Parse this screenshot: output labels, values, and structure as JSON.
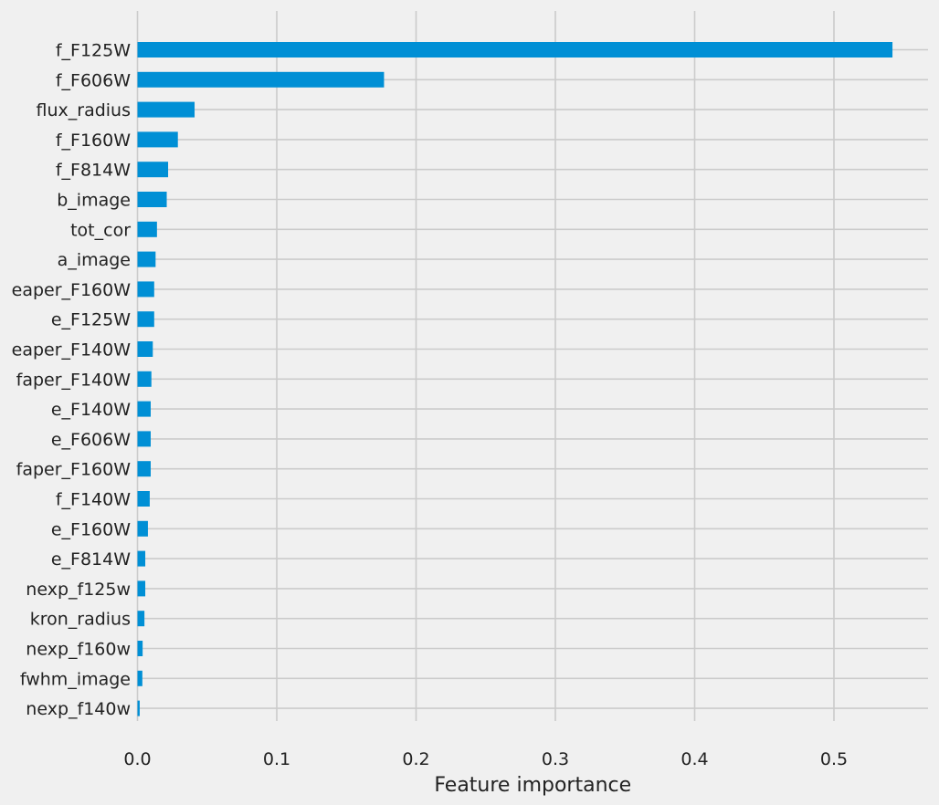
{
  "chart_data": {
    "type": "bar",
    "orientation": "horizontal",
    "title": "",
    "xlabel": "Feature importance",
    "ylabel": "",
    "xlim": [
      0,
      0.565
    ],
    "xticks": [
      0.0,
      0.1,
      0.2,
      0.3,
      0.4,
      0.5
    ],
    "xtick_labels": [
      "0.0",
      "0.1",
      "0.2",
      "0.3",
      "0.4",
      "0.5"
    ],
    "grid": true,
    "bar_color": "#008fd5",
    "background_color": "#f0f0f0",
    "grid_color": "#cbcbcb",
    "categories": [
      "f_F125W",
      "f_F606W",
      "flux_radius",
      "f_F160W",
      "f_F814W",
      "b_image",
      "tot_cor",
      "a_image",
      "eaper_F160W",
      "e_F125W",
      "eaper_F140W",
      "faper_F140W",
      "e_F140W",
      "e_F606W",
      "faper_F160W",
      "f_F140W",
      "e_F160W",
      "e_F814W",
      "nexp_f125w",
      "kron_radius",
      "nexp_f160w",
      "fwhm_image",
      "nexp_f140w"
    ],
    "values": [
      0.542,
      0.177,
      0.041,
      0.029,
      0.022,
      0.021,
      0.014,
      0.013,
      0.012,
      0.012,
      0.011,
      0.01,
      0.0095,
      0.0095,
      0.0095,
      0.0088,
      0.0075,
      0.0056,
      0.0056,
      0.005,
      0.0037,
      0.0035,
      0.0016
    ]
  }
}
